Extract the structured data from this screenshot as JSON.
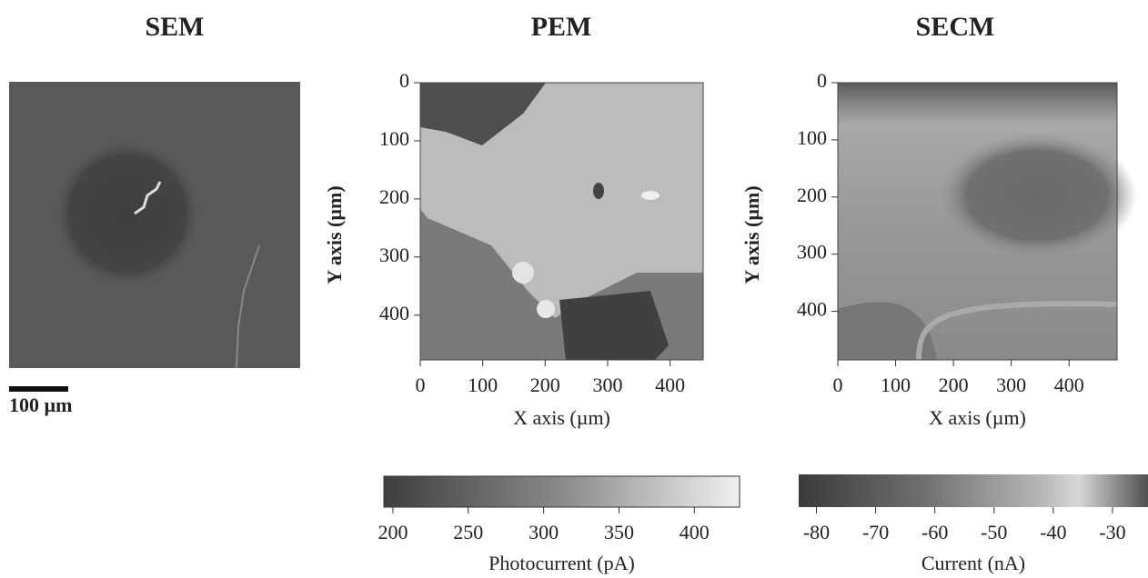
{
  "panels": [
    {
      "title": "SEM",
      "scale_bar": "100 µm"
    },
    {
      "title": "PEM",
      "xlabel": "X axis (µm)",
      "ylabel": "Y axis (µm)",
      "xlim": [
        0,
        453
      ],
      "ylim": [
        0,
        477
      ],
      "xticks": [
        0,
        100,
        200,
        300,
        400
      ],
      "yticks": [
        0,
        100,
        200,
        300,
        400
      ],
      "colorbar": {
        "label": "Photocurrent (pA)",
        "lim": [
          194,
          430
        ],
        "ticks": [
          200,
          250,
          300,
          350,
          400
        ]
      }
    },
    {
      "title": "SECM",
      "xlabel": "X axis (µm)",
      "ylabel": "Y axis (µm)",
      "xlim": [
        0,
        483
      ],
      "ylim": [
        0,
        485
      ],
      "xticks": [
        0,
        100,
        200,
        300,
        400
      ],
      "yticks": [
        0,
        100,
        200,
        300,
        400
      ],
      "colorbar": {
        "label": "Current (nA)",
        "lim": [
          -83,
          -24
        ],
        "ticks": [
          -80,
          -70,
          -60,
          -50,
          -40,
          -30
        ]
      }
    }
  ]
}
